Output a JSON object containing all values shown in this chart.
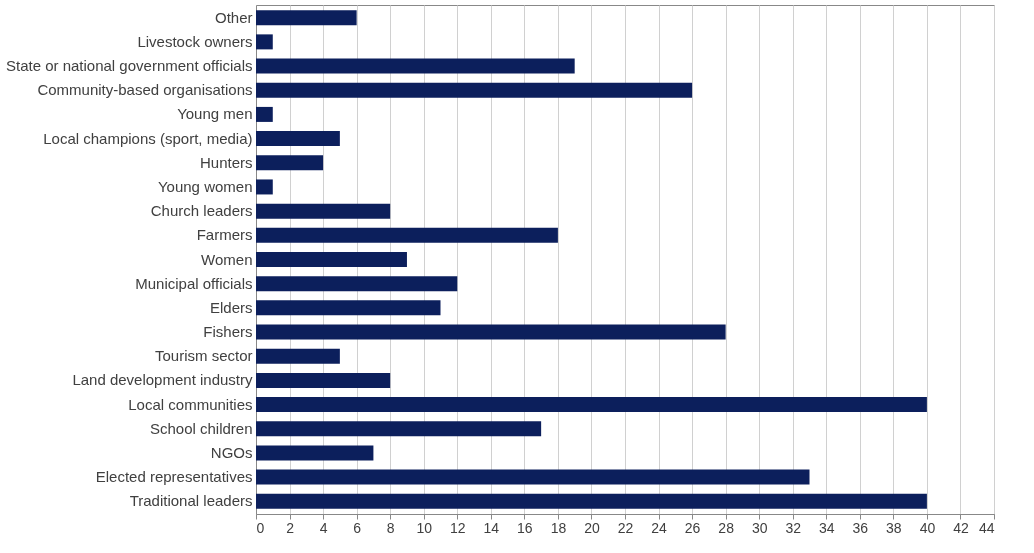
{
  "chart_data": {
    "type": "bar",
    "orientation": "horizontal",
    "categories": [
      "Other",
      "Livestock owners",
      "State or national government officials",
      "Community-based organisations",
      "Young men",
      "Local champions (sport, media)",
      "Hunters",
      "Young women",
      "Church leaders",
      "Farmers",
      "Women",
      "Municipal officials",
      "Elders",
      "Fishers",
      "Tourism sector",
      "Land development industry",
      "Local communities",
      "School children",
      "NGOs",
      "Elected representatives",
      "Traditional leaders"
    ],
    "values": [
      6,
      1,
      19,
      26,
      1,
      5,
      4,
      1,
      8,
      18,
      9,
      12,
      11,
      28,
      5,
      8,
      40,
      17,
      7,
      33,
      40
    ],
    "color": "#0c1f5c",
    "xlim": [
      0,
      44
    ],
    "xticks": [
      0,
      2,
      4,
      6,
      8,
      10,
      12,
      14,
      16,
      18,
      20,
      22,
      24,
      26,
      28,
      30,
      32,
      34,
      36,
      38,
      40,
      42,
      44
    ],
    "grid": "x"
  }
}
